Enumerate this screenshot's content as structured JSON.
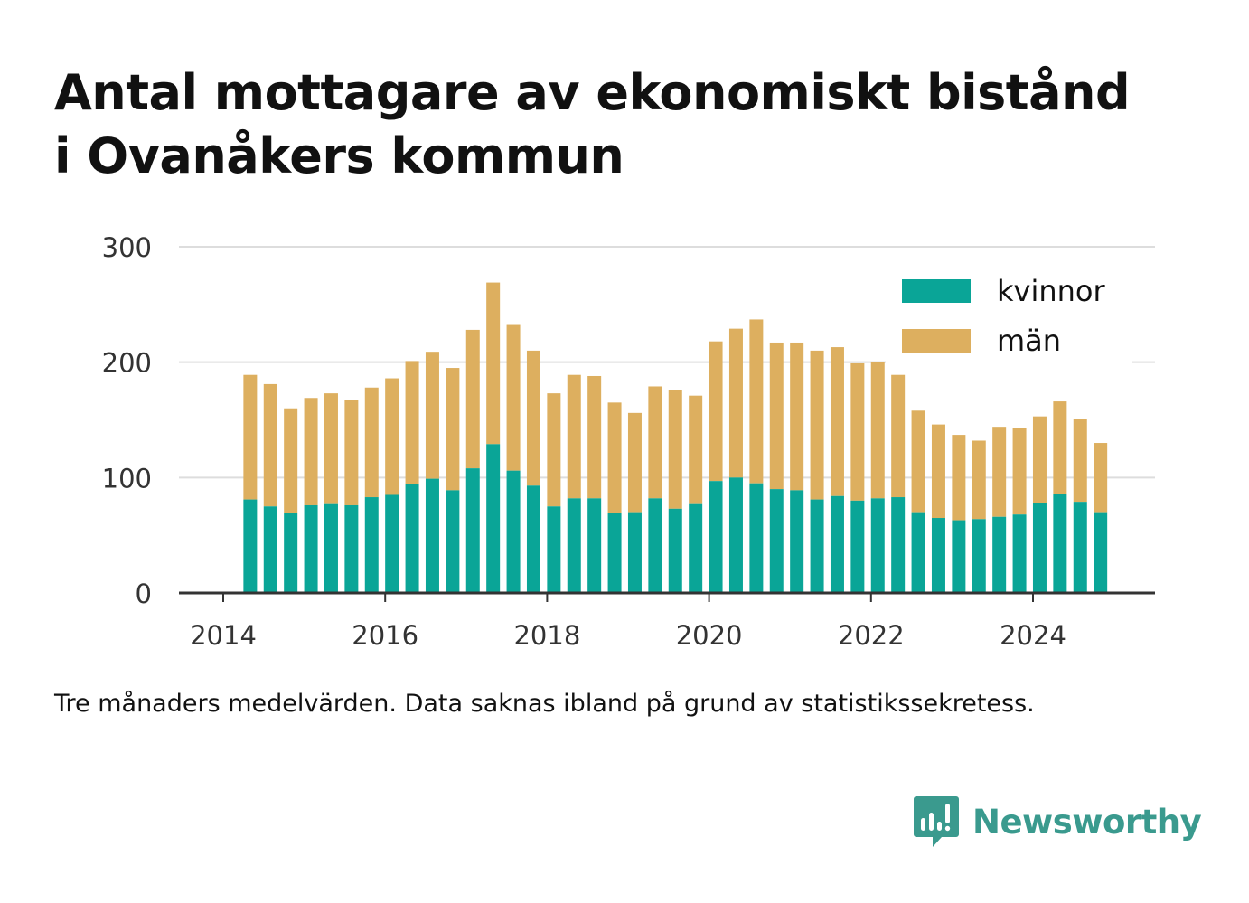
{
  "title_lines": [
    "Antal mottagare av ekonomiskt bistånd",
    "i Ovanåkers kommun"
  ],
  "footnote": "Tre månaders medelvärden. Data saknas ibland på grund av statistikssekretess.",
  "brand": {
    "name": "Newsworthy",
    "color": "#3a9a8e",
    "icon": "bar-chart-speech-bubble-icon"
  },
  "colors": {
    "kvinnor": "#0aa597",
    "man": "#ddaf5f",
    "grid": "#dddddd",
    "axis": "#333333"
  },
  "chart_data": {
    "type": "bar",
    "stacked": true,
    "title": "Antal mottagare av ekonomiskt bistånd i Ovanåkers kommun",
    "xlabel": "",
    "ylabel": "",
    "ylim": [
      0,
      300
    ],
    "xlim": [
      "2014-01",
      "2025-06"
    ],
    "yticks": [
      0,
      100,
      200,
      300
    ],
    "xticks": [
      "2014",
      "2016",
      "2018",
      "2020",
      "2022",
      "2024"
    ],
    "grid": true,
    "legend_position": "top-right",
    "x": [
      "2014-05",
      "2014-08",
      "2014-11",
      "2015-02",
      "2015-05",
      "2015-08",
      "2015-11",
      "2016-02",
      "2016-05",
      "2016-08",
      "2016-11",
      "2017-02",
      "2017-05",
      "2017-08",
      "2017-11",
      "2018-02",
      "2018-05",
      "2018-08",
      "2018-11",
      "2019-02",
      "2019-05",
      "2019-08",
      "2019-11",
      "2020-02",
      "2020-05",
      "2020-08",
      "2020-11",
      "2021-02",
      "2021-05",
      "2021-08",
      "2021-11",
      "2022-02",
      "2022-05",
      "2022-08",
      "2022-11",
      "2023-02",
      "2023-05",
      "2023-08",
      "2023-11",
      "2024-02",
      "2024-05",
      "2024-08",
      "2024-11"
    ],
    "series": [
      {
        "name": "kvinnor",
        "values": [
          81,
          75,
          69,
          76,
          77,
          76,
          83,
          85,
          94,
          99,
          89,
          108,
          129,
          106,
          93,
          75,
          82,
          82,
          69,
          70,
          82,
          73,
          77,
          97,
          100,
          95,
          90,
          89,
          81,
          84,
          80,
          82,
          83,
          70,
          65,
          63,
          64,
          66,
          68,
          78,
          86,
          79,
          70
        ]
      },
      {
        "name": "män",
        "values": [
          108,
          106,
          91,
          93,
          96,
          91,
          95,
          101,
          107,
          110,
          106,
          120,
          140,
          127,
          117,
          98,
          107,
          106,
          96,
          86,
          97,
          103,
          94,
          121,
          129,
          142,
          127,
          128,
          129,
          129,
          119,
          118,
          106,
          88,
          81,
          74,
          68,
          78,
          75,
          75,
          80,
          72,
          60
        ]
      }
    ]
  }
}
